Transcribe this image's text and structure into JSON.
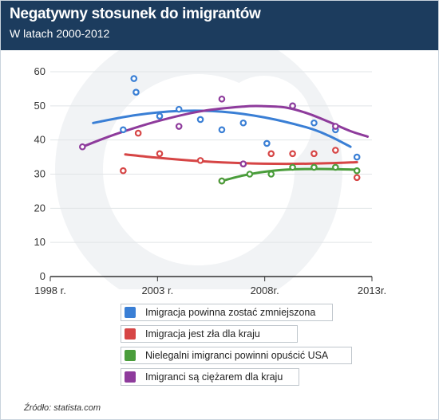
{
  "header": {
    "title": "Negatywny stosunek do imigrantów",
    "subtitle": "W  latach 2000-2012"
  },
  "source": "Źródło: statista.com",
  "chart_data": {
    "type": "scatter",
    "title": "Negatywny stosunek do imigrantów",
    "subtitle": "W  latach 2000-2012",
    "xlabel": "",
    "ylabel": "",
    "x_ticks": [
      "1998 r.",
      "2003 r.",
      "2008r.",
      "2013r."
    ],
    "x_tick_values": [
      1998,
      2003,
      2008,
      2013
    ],
    "y_ticks": [
      0,
      10,
      20,
      30,
      40,
      50,
      60
    ],
    "xlim": [
      1998,
      2013
    ],
    "ylim": [
      0,
      60
    ],
    "grid": true,
    "legend_position": "bottom",
    "series": [
      {
        "name": "Imigracja powinna zostać zmniejszona",
        "color": "#3a7fd5",
        "points": [
          [
            2001.4,
            43
          ],
          [
            2001.9,
            58
          ],
          [
            2002.0,
            54
          ],
          [
            2003.1,
            47
          ],
          [
            2004.0,
            49
          ],
          [
            2005.0,
            46
          ],
          [
            2006.0,
            43
          ],
          [
            2007.0,
            45
          ],
          [
            2008.1,
            39
          ],
          [
            2009.3,
            50
          ],
          [
            2010.3,
            45
          ],
          [
            2011.3,
            43
          ],
          [
            2012.3,
            35
          ]
        ],
        "trend": [
          [
            2000.0,
            45
          ],
          [
            2002.0,
            47.3
          ],
          [
            2004.0,
            48.5
          ],
          [
            2006.0,
            48.3
          ],
          [
            2008.0,
            46.6
          ],
          [
            2010.0,
            43.6
          ],
          [
            2011.0,
            41.2
          ],
          [
            2012.0,
            38
          ]
        ]
      },
      {
        "name": "Imigracja jest zła dla kraju",
        "color": "#d64545",
        "points": [
          [
            2001.4,
            31
          ],
          [
            2002.1,
            42
          ],
          [
            2003.1,
            36
          ],
          [
            2005.0,
            34
          ],
          [
            2006.0,
            28
          ],
          [
            2007.0,
            33
          ],
          [
            2008.3,
            36
          ],
          [
            2009.3,
            36
          ],
          [
            2010.3,
            36
          ],
          [
            2011.3,
            37
          ],
          [
            2012.3,
            29
          ]
        ],
        "trend": [
          [
            2001.5,
            35.8
          ],
          [
            2003.0,
            34.8
          ],
          [
            2005.0,
            33.8
          ],
          [
            2007.0,
            33.2
          ],
          [
            2009.0,
            33.0
          ],
          [
            2011.0,
            33.2
          ],
          [
            2012.3,
            33.5
          ]
        ]
      },
      {
        "name": "Nielegalni imigranci powinni opuścić USA",
        "color": "#4a9d3b",
        "points": [
          [
            2006.0,
            28
          ],
          [
            2007.3,
            30
          ],
          [
            2008.3,
            30
          ],
          [
            2009.3,
            32
          ],
          [
            2010.3,
            32
          ],
          [
            2011.3,
            32
          ],
          [
            2012.3,
            31
          ]
        ],
        "trend": [
          [
            2006.0,
            28
          ],
          [
            2007.0,
            29.6
          ],
          [
            2008.0,
            30.7
          ],
          [
            2009.0,
            31.3
          ],
          [
            2010.0,
            31.5
          ],
          [
            2011.0,
            31.5
          ],
          [
            2012.3,
            31.3
          ]
        ]
      },
      {
        "name": "Imigranci są ciężarem dla kraju",
        "color": "#8e3b9c",
        "points": [
          [
            1999.5,
            38
          ],
          [
            2004.0,
            44
          ],
          [
            2006.0,
            52
          ],
          [
            2007.0,
            33
          ],
          [
            2009.3,
            50
          ],
          [
            2011.3,
            44
          ]
        ],
        "trend": [
          [
            1999.5,
            38
          ],
          [
            2001.0,
            41.6
          ],
          [
            2003.0,
            45.5
          ],
          [
            2005.0,
            48.4
          ],
          [
            2007.0,
            49.8
          ],
          [
            2008.0,
            49.9
          ],
          [
            2009.0,
            49.5
          ],
          [
            2010.0,
            47.8
          ],
          [
            2011.0,
            45.3
          ],
          [
            2012.0,
            42.6
          ],
          [
            2012.8,
            41
          ]
        ]
      }
    ]
  }
}
